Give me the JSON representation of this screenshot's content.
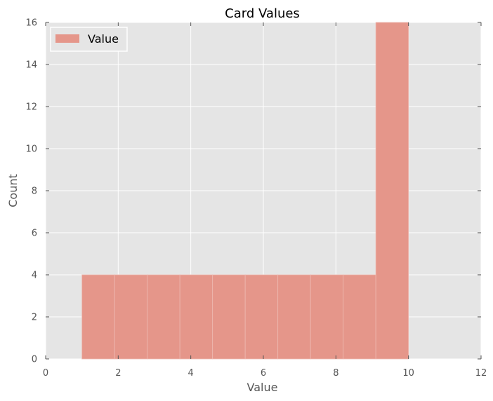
{
  "chart_data": {
    "type": "bar",
    "title": "Card Values",
    "xlabel": "Value",
    "ylabel": "Count",
    "xlim": [
      0,
      12
    ],
    "ylim": [
      0,
      16
    ],
    "xticks": [
      0,
      2,
      4,
      6,
      8,
      10,
      12
    ],
    "yticks": [
      0,
      2,
      4,
      6,
      8,
      10,
      12,
      14,
      16
    ],
    "grid": true,
    "legend_position": "top-left",
    "series": [
      {
        "name": "Value",
        "color": "#e5968a",
        "bins": [
          {
            "start": 1.0,
            "end": 1.9,
            "count": 4
          },
          {
            "start": 1.9,
            "end": 2.8,
            "count": 4
          },
          {
            "start": 2.8,
            "end": 3.7,
            "count": 4
          },
          {
            "start": 3.7,
            "end": 4.6,
            "count": 4
          },
          {
            "start": 4.6,
            "end": 5.5,
            "count": 4
          },
          {
            "start": 5.5,
            "end": 6.4,
            "count": 4
          },
          {
            "start": 6.4,
            "end": 7.3,
            "count": 4
          },
          {
            "start": 7.3,
            "end": 8.2,
            "count": 4
          },
          {
            "start": 8.2,
            "end": 9.1,
            "count": 4
          },
          {
            "start": 9.1,
            "end": 10.0,
            "count": 16
          }
        ]
      }
    ]
  }
}
